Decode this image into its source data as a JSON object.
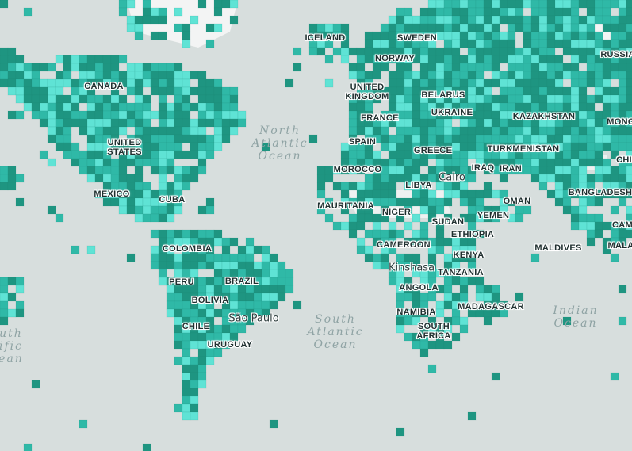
{
  "map": {
    "colors": {
      "water": "#d7dedd",
      "land": "#f3f4f4",
      "grid_light": "#5fe3d5",
      "grid_mid": "#2fb9a7",
      "grid_dark": "#1e9581"
    },
    "countries": [
      {
        "id": "iceland",
        "text": "ICELAND"
      },
      {
        "id": "sweden",
        "text": "SWEDEN"
      },
      {
        "id": "norway",
        "text": "NORWAY"
      },
      {
        "id": "russia",
        "text": "RUSSIA"
      },
      {
        "id": "canada",
        "text": "CANADA"
      },
      {
        "id": "united-kingdom",
        "text": "UNITED\nKINGDOM"
      },
      {
        "id": "belarus",
        "text": "BELARUS"
      },
      {
        "id": "france",
        "text": "FRANCE"
      },
      {
        "id": "ukraine",
        "text": "UKRAINE"
      },
      {
        "id": "kazakhstan",
        "text": "KAZAKHSTAN"
      },
      {
        "id": "mongolia",
        "text": "MONG"
      },
      {
        "id": "united-states",
        "text": "UNITED\nSTATES"
      },
      {
        "id": "spain",
        "text": "SPAIN"
      },
      {
        "id": "greece",
        "text": "GREECE"
      },
      {
        "id": "turkmenistan",
        "text": "TURKMENISTAN"
      },
      {
        "id": "china",
        "text": "CHI"
      },
      {
        "id": "morocco",
        "text": "MOROCCO"
      },
      {
        "id": "iraq",
        "text": "IRAQ"
      },
      {
        "id": "iran",
        "text": "IRAN"
      },
      {
        "id": "libya",
        "text": "LIBYA"
      },
      {
        "id": "mexico",
        "text": "MEXICO"
      },
      {
        "id": "cuba",
        "text": "CUBA"
      },
      {
        "id": "bangladesh",
        "text": "BANGLADESH"
      },
      {
        "id": "mauritania",
        "text": "MAURITANIA"
      },
      {
        "id": "niger",
        "text": "NIGER"
      },
      {
        "id": "oman",
        "text": "OMAN"
      },
      {
        "id": "yemen",
        "text": "YEMEN"
      },
      {
        "id": "sudan",
        "text": "SUDAN"
      },
      {
        "id": "cambodia",
        "text": "CAM"
      },
      {
        "id": "ethiopia",
        "text": "ETHIOPIA"
      },
      {
        "id": "cameroon",
        "text": "CAMEROON"
      },
      {
        "id": "colombia",
        "text": "COLOMBIA"
      },
      {
        "id": "maldives",
        "text": "MALDIVES"
      },
      {
        "id": "malaysia",
        "text": "MALA"
      },
      {
        "id": "kenya",
        "text": "KENYA"
      },
      {
        "id": "tanzania",
        "text": "TANZANIA"
      },
      {
        "id": "peru",
        "text": "PERU"
      },
      {
        "id": "brazil",
        "text": "BRAZIL"
      },
      {
        "id": "angola",
        "text": "ANGOLA"
      },
      {
        "id": "bolivia",
        "text": "BOLIVIA"
      },
      {
        "id": "madagascar",
        "text": "MADAGASCAR"
      },
      {
        "id": "namibia",
        "text": "NAMIBIA"
      },
      {
        "id": "chile",
        "text": "CHILE"
      },
      {
        "id": "south-africa",
        "text": "SOUTH\nAFRICA"
      },
      {
        "id": "uruguay",
        "text": "URUGUAY"
      }
    ],
    "cities": [
      {
        "id": "cairo",
        "text": "Cairo"
      },
      {
        "id": "kinshasa",
        "text": "Kinshasa"
      },
      {
        "id": "sao-paulo",
        "text": "São Paulo"
      }
    ],
    "oceans": [
      {
        "id": "north-atlantic",
        "text": "North\nAtlantic\nOcean"
      },
      {
        "id": "south-atlantic",
        "text": "South\nAtlantic\nOcean"
      },
      {
        "id": "indian",
        "text": "Indian\nOcean"
      },
      {
        "id": "south-pacific",
        "text": "uth\nific\nean"
      }
    ]
  }
}
